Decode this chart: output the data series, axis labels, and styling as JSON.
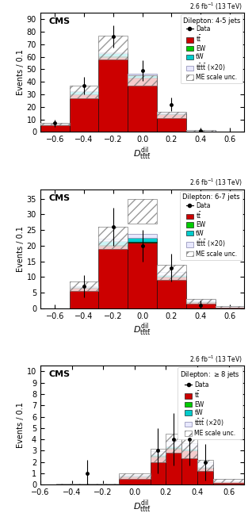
{
  "panels": [
    {
      "title": "Dilepton: 4-5 jets",
      "lumi": "2.6 fb$^{-1}$ (13 TeV)",
      "xlim": [
        -0.7,
        0.7
      ],
      "ylim": [
        0,
        95
      ],
      "yticks": [
        0,
        10,
        20,
        30,
        40,
        50,
        60,
        70,
        80,
        90
      ],
      "bin_edges": [
        -0.7,
        -0.5,
        -0.3,
        -0.1,
        0.1,
        0.3,
        0.5,
        0.7
      ],
      "tt_vals": [
        6,
        30,
        60,
        43,
        14,
        1,
        0
      ],
      "EW_vals": [
        0.2,
        0.3,
        0.5,
        0.4,
        0.2,
        0.05,
        0.0
      ],
      "tW_vals": [
        0.5,
        2.0,
        2.5,
        2.0,
        0.5,
        0.1,
        0.0
      ],
      "tttt_vals": [
        0.2,
        0.5,
        0.8,
        1.2,
        0.8,
        0.3,
        0.1
      ],
      "me_top": [
        7.5,
        37,
        77,
        45,
        16,
        1.5,
        0.2
      ],
      "me_bot": [
        5.5,
        27,
        58,
        37,
        11,
        0.5,
        0.0
      ],
      "data_vals": [
        7,
        37,
        76,
        49,
        22,
        1,
        0
      ],
      "data_err": [
        3.0,
        7.0,
        9.0,
        8.0,
        5.5,
        1.5,
        0
      ],
      "xlabel": "$D^{\\mathrm{dil}}_{\\mathrm{t\\bar{t}t\\bar{t}}}$"
    },
    {
      "title": "Dilepton: 6-7 jets",
      "lumi": "2.6 fb$^{-1}$ (13 TeV)",
      "xlim": [
        -0.7,
        0.7
      ],
      "ylim": [
        0,
        38
      ],
      "yticks": [
        0,
        5,
        10,
        15,
        20,
        25,
        30,
        35
      ],
      "bin_edges": [
        -0.5,
        -0.3,
        -0.1,
        0.1,
        0.3,
        0.5,
        0.7
      ],
      "tt_vals": [
        6.5,
        20,
        21,
        10,
        2.0,
        0.5
      ],
      "EW_vals": [
        0.1,
        0.3,
        0.3,
        0.1,
        0.05,
        0.0
      ],
      "tW_vals": [
        0.3,
        1.2,
        1.2,
        0.5,
        0.2,
        0.05
      ],
      "tttt_vals": [
        0.2,
        0.8,
        1.2,
        1.0,
        0.5,
        0.2
      ],
      "me_top": [
        8.5,
        26,
        35,
        14,
        3.0,
        0.8
      ],
      "me_bot": [
        5.5,
        19,
        27,
        9,
        1.5,
        0.2
      ],
      "data_vals": [
        7,
        26,
        20,
        13,
        1,
        0
      ],
      "data_err": [
        3.5,
        6.0,
        5.0,
        4.5,
        1.5,
        0
      ],
      "xlabel": "$D^{\\mathrm{dil}}_{\\mathrm{t\\bar{t}t\\bar{t}}}$"
    },
    {
      "title": "Dilepton: $\\geq$8 jets",
      "lumi": "2.6 fb$^{-1}$ (13 TeV)",
      "xlim": [
        -0.6,
        0.7
      ],
      "ylim": [
        0,
        10.5
      ],
      "yticks": [
        0,
        1,
        2,
        3,
        4,
        5,
        6,
        7,
        8,
        9,
        10
      ],
      "bin_edges": [
        -0.5,
        -0.1,
        0.1,
        0.2,
        0.3,
        0.4,
        0.5,
        0.7
      ],
      "tt_vals": [
        0.0,
        0.7,
        2.5,
        3.2,
        3.0,
        1.5,
        0.3
      ],
      "EW_vals": [
        0.0,
        0.02,
        0.05,
        0.06,
        0.05,
        0.03,
        0.01
      ],
      "tW_vals": [
        0.0,
        0.05,
        0.1,
        0.1,
        0.1,
        0.05,
        0.02
      ],
      "tttt_vals": [
        0.0,
        0.1,
        0.3,
        0.5,
        0.5,
        0.4,
        0.2
      ],
      "me_top": [
        0.1,
        1.0,
        3.2,
        4.5,
        4.2,
        2.2,
        0.5
      ],
      "me_bot": [
        0.0,
        0.5,
        2.0,
        2.8,
        2.3,
        1.2,
        0.2
      ],
      "data_vals": [
        1,
        0,
        3,
        4,
        4,
        2,
        0
      ],
      "data_err": [
        1.2,
        0,
        2.0,
        2.3,
        2.3,
        1.6,
        0
      ],
      "xlabel": "$D^{\\mathrm{dil}}_{\\mathrm{t\\bar{t}t\\bar{t}}}$"
    }
  ],
  "colors": {
    "tt": "#cc0000",
    "EW": "#00cc00",
    "tW": "#00cccc",
    "tttt": "#e8e8ff",
    "tttt_edge": "#9999bb",
    "me_hatch": "gray",
    "data": "black"
  }
}
